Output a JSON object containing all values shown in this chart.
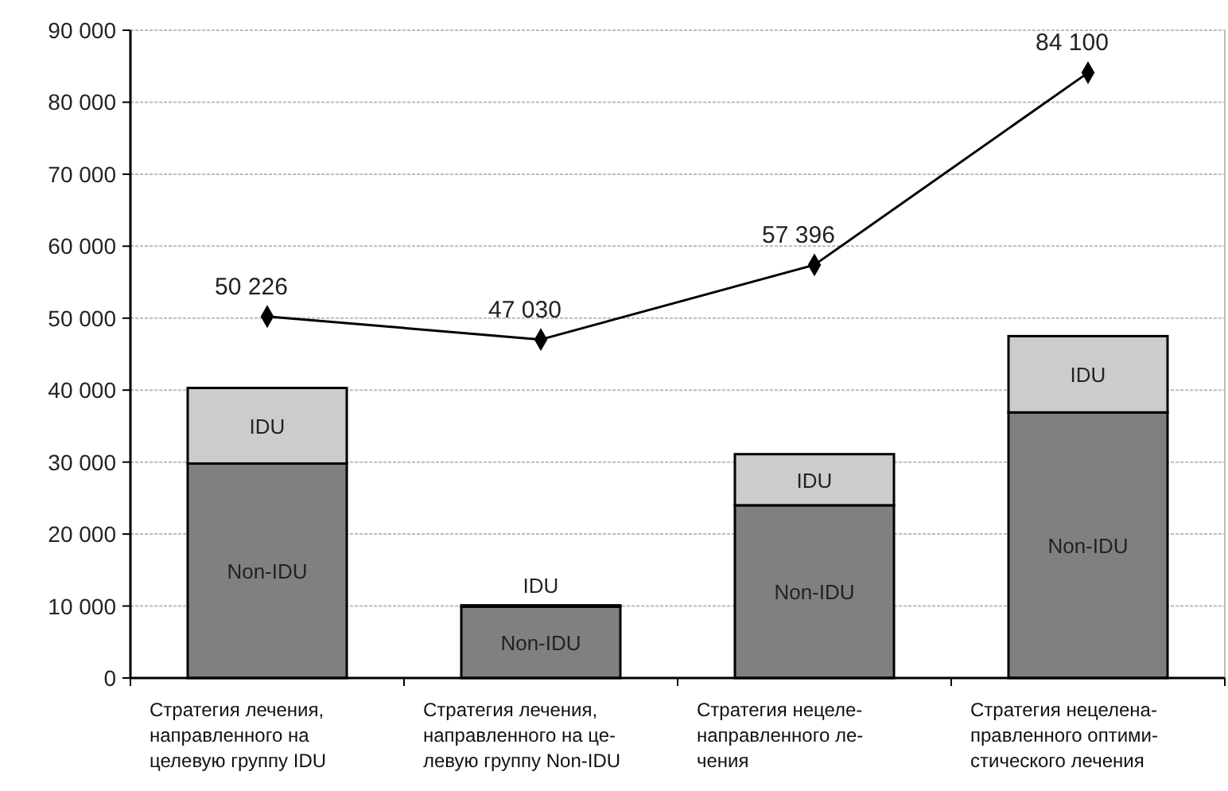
{
  "chart_data": {
    "type": "bar",
    "stacked": true,
    "categories": [
      "Стратегия лечения,\nнаправленного на\nцелевую группу IDU",
      "Стратегия лечения,\nнаправленного на це-\nлевую группу Non-IDU",
      "Стратегия нецеле-\nнаправленного ле-\nчения",
      "Стратегия нецелена-\nправленного оптими-\nстического лечения"
    ],
    "series": [
      {
        "name": "Non-IDU",
        "color": "#808080",
        "values": [
          29800,
          9900,
          24000,
          36900
        ]
      },
      {
        "name": "IDU",
        "color": "#cccccc",
        "values": [
          10500,
          200,
          7100,
          10600
        ]
      },
      {
        "type": "line",
        "color": "#000000",
        "marker": "diamond",
        "values": [
          50226,
          47030,
          57396,
          84100
        ],
        "value_labels": [
          "50 226",
          "47 030",
          "57 396",
          "84 100"
        ]
      }
    ],
    "ylim": [
      0,
      90000
    ],
    "yticks": [
      {
        "value": 0,
        "label": "0"
      },
      {
        "value": 10000,
        "label": "10 000"
      },
      {
        "value": 20000,
        "label": "20 000"
      },
      {
        "value": 30000,
        "label": "30 000"
      },
      {
        "value": 40000,
        "label": "40 000"
      },
      {
        "value": 50000,
        "label": "50 000"
      },
      {
        "value": 60000,
        "label": "60 000"
      },
      {
        "value": 70000,
        "label": "70 000"
      },
      {
        "value": 80000,
        "label": "80 000"
      },
      {
        "value": 90000,
        "label": "90 000"
      }
    ],
    "grid": "y"
  }
}
